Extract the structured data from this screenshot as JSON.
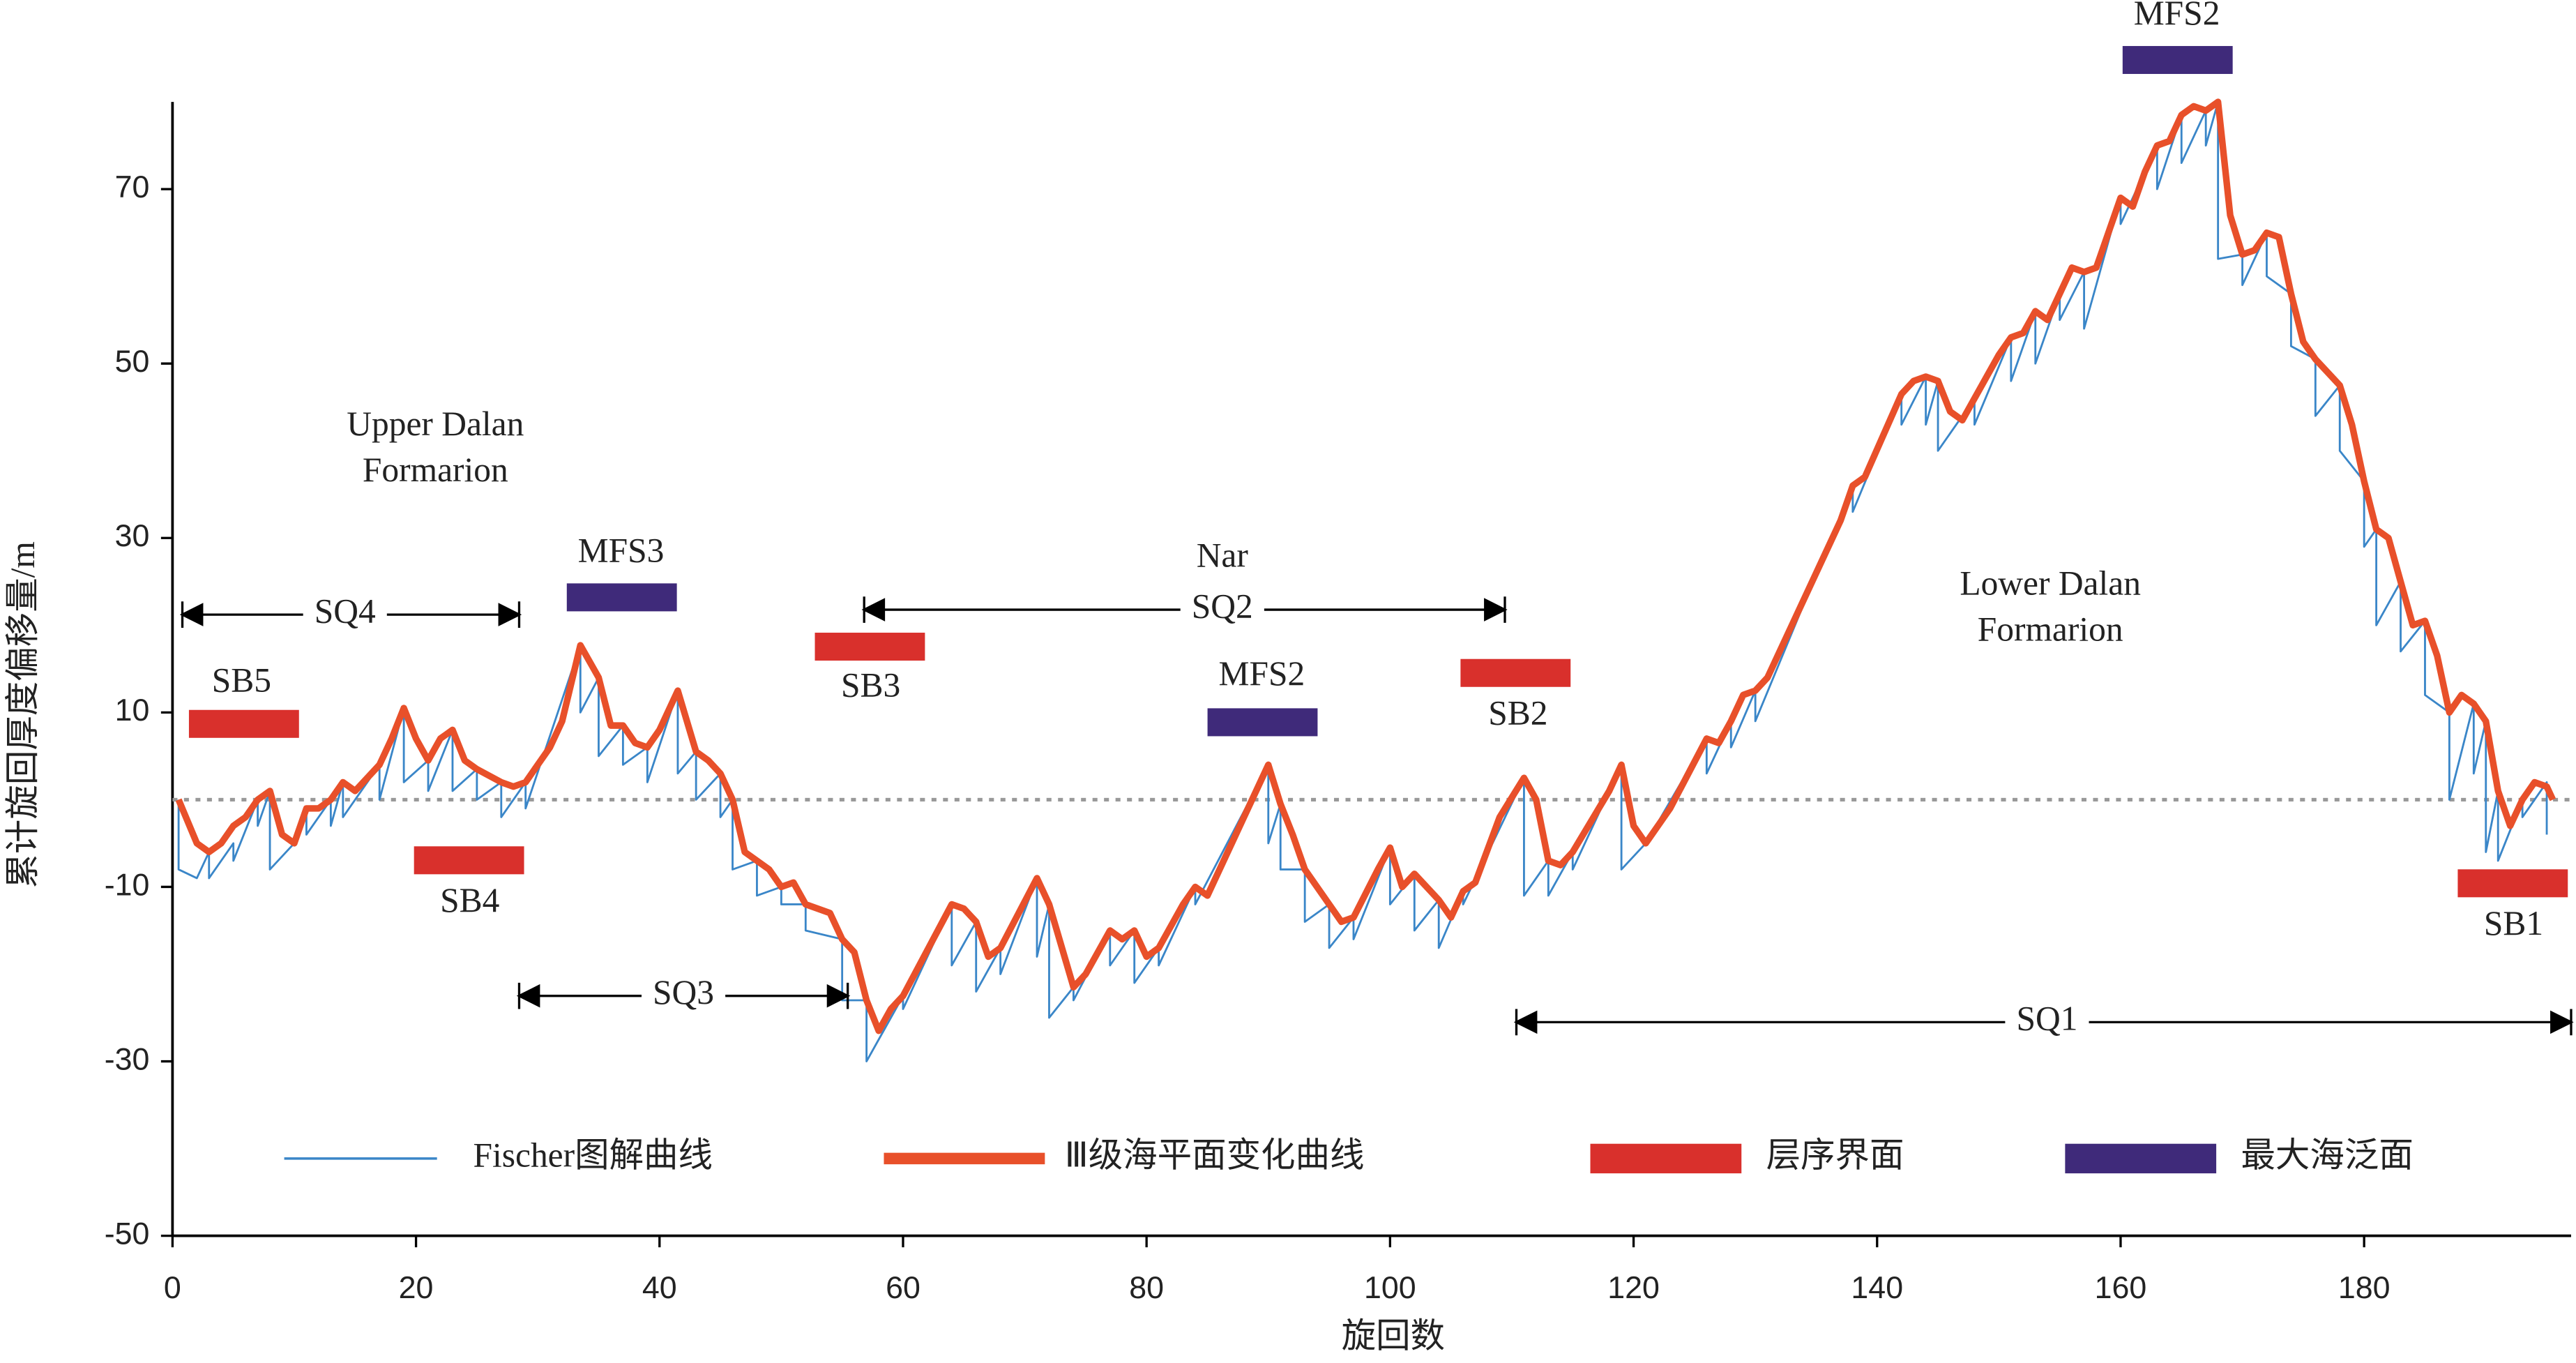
{
  "chart_data": {
    "type": "line",
    "xlabel": "旋回数",
    "ylabel": "累计旋回厚度偏移量/m",
    "xlim": [
      0,
      197
    ],
    "xticks": [
      0,
      20,
      40,
      60,
      80,
      100,
      120,
      140,
      160,
      180
    ],
    "ylim": [
      -50,
      80
    ],
    "yticks": [
      -50,
      -30,
      -10,
      10,
      30,
      50,
      70
    ],
    "hline": 0,
    "series": [
      {
        "name": "Fischer图解曲线",
        "color": "#3a86c8",
        "x": [
          0.5,
          0.5,
          2,
          3,
          3,
          5,
          5,
          7,
          7,
          8,
          8,
          10,
          11,
          11,
          13,
          13,
          14,
          14,
          17,
          17,
          19,
          19,
          21,
          21,
          23,
          23,
          25,
          25,
          27,
          27,
          29,
          29,
          33.5,
          33.5,
          35,
          35,
          37,
          37,
          39,
          39,
          41.5,
          41.5,
          43,
          43,
          45,
          45,
          46,
          46,
          48,
          48,
          50,
          50,
          52,
          52,
          55,
          55,
          57,
          57,
          60,
          60,
          64,
          64,
          66,
          66,
          68,
          68,
          71,
          71,
          72,
          72,
          74,
          74,
          77,
          77,
          79,
          79,
          81,
          81,
          84,
          84,
          90,
          90,
          91,
          91,
          93,
          93,
          95,
          95,
          97,
          97,
          100,
          100,
          102,
          102,
          104,
          104,
          106,
          106,
          111,
          111,
          113,
          113,
          115,
          115,
          119,
          119,
          121,
          126,
          126,
          128,
          128,
          130,
          130,
          138,
          138,
          142,
          142,
          144,
          144,
          145,
          145,
          148,
          148,
          151,
          151,
          153,
          153,
          155,
          155,
          157,
          157,
          160,
          160,
          163,
          163,
          165,
          165,
          167,
          167,
          168,
          168,
          170,
          170,
          172,
          172,
          174,
          174,
          176,
          176,
          178,
          178,
          180,
          180,
          181,
          181,
          183,
          183,
          185,
          185,
          187,
          187,
          189,
          189,
          190,
          190,
          191,
          191,
          193,
          193,
          195,
          195
        ],
        "values": [
          0,
          -8,
          -9,
          -6,
          -9,
          -5,
          -7,
          0,
          -3,
          1,
          -8,
          -5,
          -1,
          -4,
          0,
          -3,
          2,
          -2,
          4,
          0,
          10.5,
          2,
          4.5,
          1,
          8,
          1,
          3.5,
          0,
          2,
          -2,
          2,
          -1,
          17.7,
          10,
          14,
          5,
          8.5,
          4,
          6,
          2,
          12.5,
          3,
          5.5,
          0,
          3,
          -2,
          0,
          -8,
          -7,
          -11,
          -10,
          -12,
          -12,
          -15,
          -16,
          -23,
          -23,
          -30,
          -22.5,
          -24,
          -12,
          -19,
          -14,
          -22,
          -17,
          -20,
          -9,
          -18,
          -12,
          -25,
          -21.5,
          -23,
          -15,
          -19,
          -15,
          -21,
          -17,
          -19,
          -10,
          -12,
          4,
          -5,
          -0.5,
          -8,
          -8,
          -14,
          -12,
          -17,
          -13.5,
          -16,
          -5.5,
          -12,
          -8.5,
          -15,
          -11.5,
          -17,
          -10.5,
          -12,
          2.5,
          -11,
          -7,
          -11,
          -6,
          -8,
          4,
          -8,
          -5,
          7,
          3,
          9,
          6,
          12.5,
          9,
          36,
          33,
          46.5,
          43,
          48.5,
          43,
          48,
          40,
          46,
          43,
          53,
          48,
          56,
          50,
          58,
          55,
          60.5,
          54,
          69,
          66,
          75,
          70,
          78.5,
          73,
          79,
          75,
          80,
          62,
          62.5,
          59,
          65,
          60,
          58,
          52,
          50.5,
          44,
          47.5,
          40,
          36.5,
          29,
          31,
          20,
          25,
          17,
          20.5,
          12,
          10,
          0,
          11,
          3,
          9,
          -6,
          1,
          -7,
          0,
          -2,
          2,
          -4
        ]
      },
      {
        "name": "Ⅲ级海平面变化曲线",
        "color": "#e8502a",
        "x": [
          0.5,
          2,
          3,
          4,
          5,
          6,
          7,
          8,
          9,
          10,
          11,
          12,
          13,
          14,
          15,
          17,
          18,
          19,
          20,
          21,
          22,
          23,
          24,
          25,
          27,
          28,
          29,
          31,
          32,
          33.5,
          35,
          36,
          37,
          38,
          39,
          40,
          41.5,
          43,
          44,
          45,
          46,
          47,
          48,
          49,
          50,
          51,
          52,
          54,
          55,
          56,
          57,
          58,
          59,
          60,
          64,
          65,
          66,
          67,
          68,
          71,
          72,
          74,
          75,
          77,
          78,
          79,
          80,
          81,
          83,
          84,
          85,
          88,
          90,
          91,
          92,
          93,
          94,
          95,
          96,
          97,
          99,
          100,
          101,
          102,
          103,
          104,
          105,
          106,
          107,
          109,
          111,
          112,
          113,
          114,
          115,
          118,
          119,
          120,
          121,
          123,
          126,
          127,
          128,
          129,
          130,
          131,
          133,
          135,
          137,
          138,
          139,
          142,
          143,
          144,
          145,
          146,
          147,
          148,
          150,
          151,
          152,
          153,
          154,
          155,
          156,
          157,
          158,
          160,
          161,
          162,
          163,
          164,
          165,
          166,
          167,
          168,
          169,
          170,
          171,
          172,
          173,
          174,
          175,
          176,
          177,
          178,
          179,
          180,
          181,
          182,
          183,
          184,
          185,
          186,
          187,
          188,
          189,
          190,
          191,
          192,
          193,
          194,
          195,
          195.5
        ],
        "values": [
          0,
          -5,
          -6,
          -5,
          -3,
          -2,
          0,
          1,
          -4,
          -5,
          -1,
          -1,
          0,
          2,
          1,
          4,
          7,
          10.5,
          7,
          4.5,
          7,
          8,
          4.5,
          3.5,
          2,
          1.5,
          2,
          6,
          9,
          17.7,
          14,
          8.5,
          8.5,
          6.5,
          6,
          8,
          12.5,
          5.5,
          4.5,
          3,
          0,
          -6,
          -7,
          -8,
          -10,
          -9.5,
          -12,
          -13,
          -16,
          -17.5,
          -23,
          -26.5,
          -24,
          -22.5,
          -12,
          -12.5,
          -14,
          -18,
          -17,
          -9,
          -12,
          -21.5,
          -20,
          -15,
          -16,
          -15,
          -18,
          -17,
          -12,
          -10,
          -11,
          -2,
          4,
          -0.5,
          -4,
          -8,
          -10,
          -12,
          -14,
          -13.5,
          -8,
          -5.5,
          -10,
          -8.5,
          -10,
          -11.5,
          -13.5,
          -10.5,
          -9.5,
          -2,
          2.5,
          0,
          -7,
          -7.5,
          -6,
          1,
          4,
          -3,
          -5,
          -1,
          7,
          6.5,
          9,
          12,
          12.5,
          14,
          20,
          26,
          32,
          36,
          37,
          46.5,
          48,
          48.5,
          48,
          44.5,
          43.5,
          46,
          51,
          53,
          53.5,
          56,
          55,
          58,
          61,
          60.5,
          61,
          69,
          68,
          72,
          75,
          75.5,
          78.5,
          79.5,
          79,
          80,
          67,
          62.5,
          63,
          65,
          64.5,
          58,
          52.5,
          50.5,
          49,
          47.5,
          43,
          36.5,
          31,
          30,
          25,
          20,
          20.5,
          16.5,
          10,
          12,
          11,
          9,
          1,
          -3,
          0,
          2,
          1.5,
          0
        ]
      }
    ],
    "markers": [
      {
        "name": "层序界面",
        "color": "#d9302c"
      },
      {
        "name": "最大海泛面",
        "color": "#3f2a7a"
      }
    ],
    "boundaries": [
      "SB5",
      "SB4",
      "SB3",
      "SB2",
      "SB1"
    ],
    "flooding_surfaces": [
      "MFS3",
      "MFS2",
      "MFS2"
    ],
    "sequences": [
      "SQ4",
      "SQ3",
      "SQ2",
      "SQ1"
    ],
    "formations": [
      [
        "Upper Dalan",
        "Formarion"
      ],
      [
        "Nar"
      ],
      [
        "Lower Dalan",
        "Formarion"
      ]
    ]
  }
}
